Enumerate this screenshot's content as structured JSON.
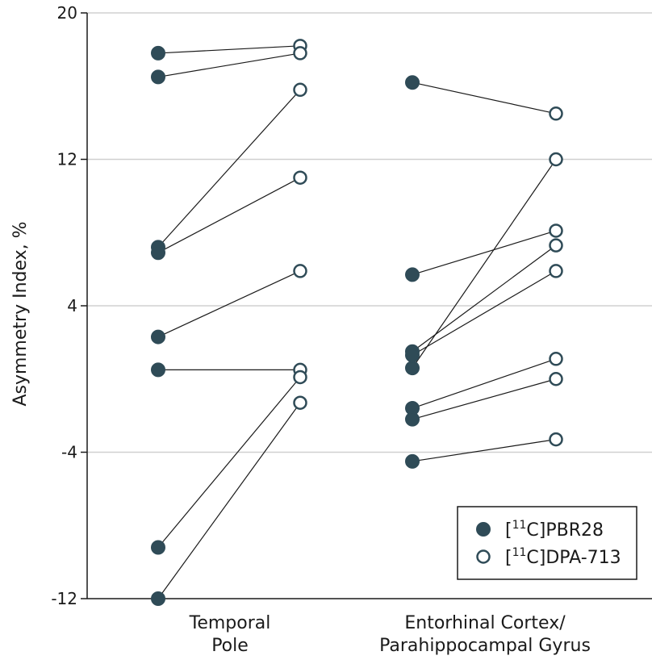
{
  "chart_data": {
    "type": "scatter",
    "ylabel": "Asymmetry Index, %",
    "ylim": [
      -12,
      20
    ],
    "yticks": [
      "-12",
      "-4",
      "4",
      "12",
      "20"
    ],
    "grid": true,
    "legend_position": "bottom-right",
    "categories": [
      {
        "lines": [
          "Temporal",
          "Pole"
        ]
      },
      {
        "lines": [
          "Entorhinal Cortex/",
          "Parahippocampal Gyrus"
        ]
      }
    ],
    "series": [
      {
        "name": "[11C]PBR28",
        "name_parts": {
          "pre": "[",
          "sup": "11",
          "post": "C]PBR28"
        },
        "marker": "filled",
        "color": "#2f4b57"
      },
      {
        "name": "[11C]DPA-713",
        "name_parts": {
          "pre": "[",
          "sup": "11",
          "post": "C]DPA-713"
        },
        "marker": "open",
        "color": "#2f4b57"
      }
    ],
    "pairs": [
      [
        [
          17.8,
          18.2
        ],
        [
          16.5,
          17.8
        ],
        [
          7.2,
          15.8
        ],
        [
          6.9,
          11.0
        ],
        [
          2.3,
          5.9
        ],
        [
          0.5,
          0.5
        ],
        [
          -9.2,
          0.1
        ],
        [
          -12.0,
          -1.3
        ]
      ],
      [
        [
          16.2,
          14.5
        ],
        [
          5.7,
          8.1
        ],
        [
          1.5,
          7.3
        ],
        [
          1.3,
          5.9
        ],
        [
          0.6,
          12.0
        ],
        [
          -1.6,
          1.1
        ],
        [
          -2.2,
          0.0
        ],
        [
          -4.5,
          -3.3
        ]
      ]
    ]
  }
}
